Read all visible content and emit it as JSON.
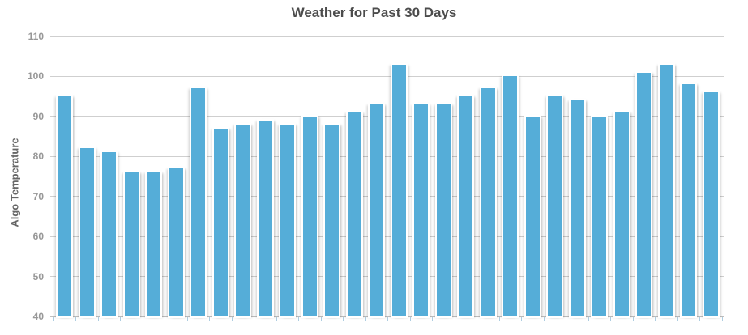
{
  "chart": {
    "title": "Weather for Past 30 Days",
    "y_axis": {
      "label": "Algo Temperature",
      "min": 40,
      "max": 110,
      "tick_step": 10
    },
    "x_axis": {
      "labels_visible": false
    },
    "colors": {
      "bar": "#55add8",
      "gridline": "#cfcfcf",
      "baseline": "#bfbfbf",
      "x_tick": "#aecde0",
      "title_text": "#4c4c4c",
      "y_tick_text": "#989898",
      "y_axis_title_text": "#666666",
      "background": "#ffffff"
    }
  },
  "chart_data": {
    "type": "bar",
    "title": "Weather for Past 30 Days",
    "xlabel": "",
    "ylabel": "Algo Temperature",
    "ylim": [
      40,
      110
    ],
    "yticks": [
      40,
      50,
      60,
      70,
      80,
      90,
      100,
      110
    ],
    "x": [
      1,
      2,
      3,
      4,
      5,
      6,
      7,
      8,
      9,
      10,
      11,
      12,
      13,
      14,
      15,
      16,
      17,
      18,
      19,
      20,
      21,
      22,
      23,
      24,
      25,
      26,
      27,
      28,
      29,
      30
    ],
    "values": [
      95,
      82,
      81,
      76,
      76,
      77,
      97,
      87,
      88,
      89,
      88,
      90,
      88,
      91,
      93,
      103,
      93,
      93,
      95,
      97,
      100,
      90,
      95,
      94,
      90,
      91,
      101,
      103,
      98,
      96
    ],
    "series_name": "Algo Temperature",
    "legend": "none",
    "grid": "horizontal",
    "x_tick_labels": []
  }
}
